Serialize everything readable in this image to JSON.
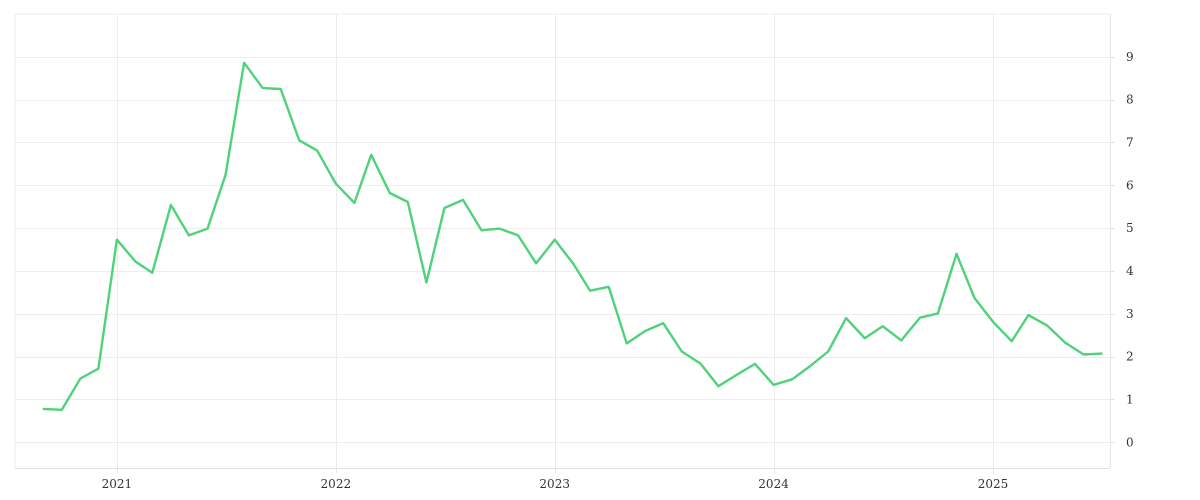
{
  "chart_data": {
    "type": "line",
    "title": "",
    "xlabel": "",
    "ylabel": "",
    "ylim": [
      -0.6,
      10
    ],
    "xlim": [
      "2020-07-15",
      "2025-07-15"
    ],
    "y_ticks": [
      0,
      1,
      2,
      3,
      4,
      5,
      6,
      7,
      8,
      9
    ],
    "y_axis_side": "right",
    "x_ticks": [
      {
        "date": "2021-01-01",
        "label": "2021"
      },
      {
        "date": "2022-01-01",
        "label": "2022"
      },
      {
        "date": "2023-01-01",
        "label": "2023"
      },
      {
        "date": "2024-01-01",
        "label": "2024"
      },
      {
        "date": "2025-01-01",
        "label": "2025"
      }
    ],
    "grid": true,
    "series": [
      {
        "color": "#4fd27a",
        "points": [
          [
            "2020-09-01",
            0.78
          ],
          [
            "2020-10-01",
            0.76
          ],
          [
            "2020-11-01",
            1.49
          ],
          [
            "2020-12-01",
            1.72
          ],
          [
            "2021-01-01",
            4.73
          ],
          [
            "2021-02-01",
            4.22
          ],
          [
            "2021-03-01",
            3.96
          ],
          [
            "2021-04-01",
            5.54
          ],
          [
            "2021-05-01",
            4.83
          ],
          [
            "2021-06-01",
            4.99
          ],
          [
            "2021-07-01",
            6.24
          ],
          [
            "2021-08-01",
            8.86
          ],
          [
            "2021-09-01",
            8.27
          ],
          [
            "2021-10-01",
            8.25
          ],
          [
            "2021-11-01",
            7.05
          ],
          [
            "2021-12-01",
            6.81
          ],
          [
            "2022-01-01",
            6.04
          ],
          [
            "2022-02-01",
            5.59
          ],
          [
            "2022-03-01",
            6.71
          ],
          [
            "2022-04-01",
            5.82
          ],
          [
            "2022-05-01",
            5.61
          ],
          [
            "2022-06-01",
            3.73
          ],
          [
            "2022-07-01",
            5.47
          ],
          [
            "2022-08-01",
            5.66
          ],
          [
            "2022-09-01",
            4.95
          ],
          [
            "2022-10-01",
            4.99
          ],
          [
            "2022-11-01",
            4.83
          ],
          [
            "2022-12-01",
            4.18
          ],
          [
            "2023-01-01",
            4.73
          ],
          [
            "2023-02-01",
            4.17
          ],
          [
            "2023-03-01",
            3.54
          ],
          [
            "2023-04-01",
            3.63
          ],
          [
            "2023-05-01",
            2.31
          ],
          [
            "2023-06-01",
            2.6
          ],
          [
            "2023-07-01",
            2.78
          ],
          [
            "2023-08-01",
            2.12
          ],
          [
            "2023-09-01",
            1.84
          ],
          [
            "2023-10-01",
            1.31
          ],
          [
            "2023-11-01",
            1.58
          ],
          [
            "2023-12-01",
            1.83
          ],
          [
            "2024-01-01",
            1.34
          ],
          [
            "2024-02-01",
            1.47
          ],
          [
            "2024-03-01",
            1.77
          ],
          [
            "2024-04-01",
            2.12
          ],
          [
            "2024-05-01",
            2.9
          ],
          [
            "2024-06-01",
            2.43
          ],
          [
            "2024-07-01",
            2.71
          ],
          [
            "2024-08-01",
            2.38
          ],
          [
            "2024-09-01",
            2.91
          ],
          [
            "2024-10-01",
            3.01
          ],
          [
            "2024-11-01",
            4.4
          ],
          [
            "2024-12-01",
            3.37
          ],
          [
            "2025-01-01",
            2.81
          ],
          [
            "2025-02-01",
            2.36
          ],
          [
            "2025-03-01",
            2.97
          ],
          [
            "2025-04-01",
            2.73
          ],
          [
            "2025-05-01",
            2.33
          ],
          [
            "2025-06-01",
            2.05
          ],
          [
            "2025-07-01",
            2.07
          ]
        ]
      }
    ]
  }
}
